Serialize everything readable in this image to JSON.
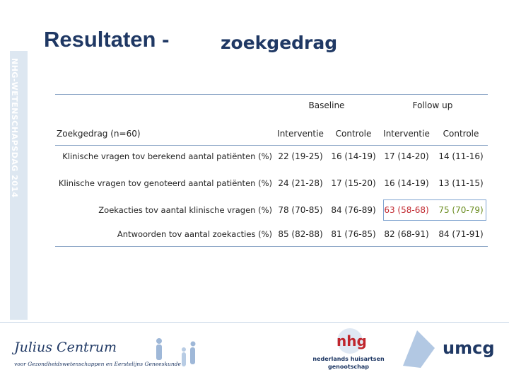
{
  "header": {
    "title": "Resultaten -",
    "subtitle": "zoekgedrag"
  },
  "sidebar": {
    "text": "NHG-WETENSCHAPSDAG 2014"
  },
  "table": {
    "groups": [
      "Baseline",
      "Follow up"
    ],
    "columns": [
      "Zoekgedrag (n=60)",
      "Interventie",
      "Controle",
      "Interventie",
      "Controle"
    ],
    "rows": [
      [
        "Klinische vragen tov berekend aantal patiënten (%)",
        "22 (19-25)",
        "16 (14-19)",
        "17 (14-20)",
        "14 (11-16)"
      ],
      [
        "Klinische vragen tov genoteerd aantal patiënten (%)",
        "24 (21-28)",
        "17 (15-20)",
        "16 (14-19)",
        "13 (11-15)"
      ],
      [
        "Zoekacties tov aantal klinische vragen (%)",
        "78 (70-85)",
        "84 (76-89)",
        "63 (58-68)",
        "75 (70-79)"
      ],
      [
        "Antwoorden tov aantal zoekacties (%)",
        "85 (82-88)",
        "81 (76-85)",
        "82 (68-91)",
        "84 (71-91)"
      ]
    ]
  },
  "footer": {
    "julius": "Julius Centrum",
    "julius_sub": "voor Gezondheidswetenschappen en Eerstelijns Geneeskunde",
    "nhg": "nhg",
    "nhg_sub": "nederlands huisartsen genootschap",
    "umcg": "umcg"
  }
}
